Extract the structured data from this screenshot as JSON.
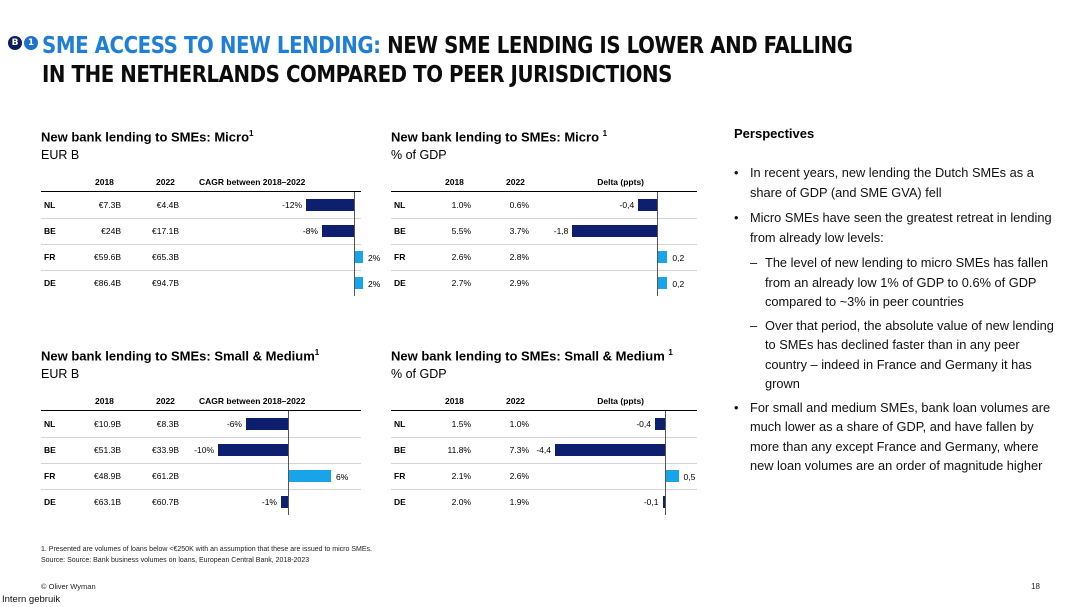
{
  "badges": [
    "B",
    "1"
  ],
  "header": {
    "title_accent": "SME ACCESS TO NEW LENDING:",
    "title_rest": " NEW SME LENDING IS LOWER AND FALLING",
    "title_line2": "IN THE NETHERLANDS COMPARED TO PEER JURISDICTIONS"
  },
  "panels": {
    "micro_eur": {
      "title": "New bank lending to SMEs: Micro",
      "sup": "1",
      "unit": "EUR B"
    },
    "micro_gdp": {
      "title": "New bank lending to SMEs: Micro ",
      "sup": "1",
      "unit": "% of GDP"
    },
    "sm_eur": {
      "title": "New bank lending to SMEs: Small & Medium",
      "sup": "1",
      "unit": "EUR B"
    },
    "sm_gdp": {
      "title": "New bank lending to SMEs: Small & Medium ",
      "sup": "1",
      "unit": "% of GDP"
    }
  },
  "chart_data": [
    {
      "type": "table",
      "title": "New bank lending to SMEs: Micro",
      "unit": "EUR B",
      "columns": [
        "2018",
        "2022",
        "CAGR between 2018–2022"
      ],
      "rows": [
        {
          "country": "NL",
          "v2018": "€7.3B",
          "v2022": "€4.4B",
          "value": -12,
          "label": "-12%"
        },
        {
          "country": "BE",
          "v2018": "€24B",
          "v2022": "€17.1B",
          "value": -8,
          "label": "-8%"
        },
        {
          "country": "FR",
          "v2018": "€59.6B",
          "v2022": "€65.3B",
          "value": 2,
          "label": "2%"
        },
        {
          "country": "DE",
          "v2018": "€86.4B",
          "v2022": "€94.7B",
          "value": 2,
          "label": "2%"
        }
      ]
    },
    {
      "type": "table",
      "title": "New bank lending to SMEs: Micro",
      "unit": "% of GDP",
      "columns": [
        "2018",
        "2022",
        "Delta (ppts)"
      ],
      "rows": [
        {
          "country": "NL",
          "v2018": "1.0%",
          "v2022": "0.6%",
          "value": -0.4,
          "label": "-0,4"
        },
        {
          "country": "BE",
          "v2018": "5.5%",
          "v2022": "3.7%",
          "value": -1.8,
          "label": "-1,8"
        },
        {
          "country": "FR",
          "v2018": "2.6%",
          "v2022": "2.8%",
          "value": 0.2,
          "label": "0,2"
        },
        {
          "country": "DE",
          "v2018": "2.7%",
          "v2022": "2.9%",
          "value": 0.2,
          "label": "0,2"
        }
      ]
    },
    {
      "type": "table",
      "title": "New bank lending to SMEs: Small & Medium",
      "unit": "EUR B",
      "columns": [
        "2018",
        "2022",
        "CAGR between 2018–2022"
      ],
      "rows": [
        {
          "country": "NL",
          "v2018": "€10.9B",
          "v2022": "€8.3B",
          "value": -6,
          "label": "-6%"
        },
        {
          "country": "BE",
          "v2018": "€51.3B",
          "v2022": "€33.9B",
          "value": -10,
          "label": "-10%"
        },
        {
          "country": "FR",
          "v2018": "€48.9B",
          "v2022": "€61.2B",
          "value": 6,
          "label": "6%"
        },
        {
          "country": "DE",
          "v2018": "€63.1B",
          "v2022": "€60.7B",
          "value": -1,
          "label": "-1%"
        }
      ]
    },
    {
      "type": "table",
      "title": "New bank lending to SMEs: Small & Medium",
      "unit": "% of GDP",
      "columns": [
        "2018",
        "2022",
        "Delta (ppts)"
      ],
      "rows": [
        {
          "country": "NL",
          "v2018": "1.5%",
          "v2022": "1.0%",
          "value": -0.4,
          "label": "-0,4"
        },
        {
          "country": "BE",
          "v2018": "11.8%",
          "v2022": "7.3%",
          "value": -4.4,
          "label": "-4,4"
        },
        {
          "country": "FR",
          "v2018": "2.1%",
          "v2022": "2.6%",
          "value": 0.5,
          "label": "0,5"
        },
        {
          "country": "DE",
          "v2018": "2.0%",
          "v2022": "1.9%",
          "value": -0.1,
          "label": "-0,1"
        }
      ]
    }
  ],
  "perspectives": {
    "heading": "Perspectives",
    "b1": "In recent years, new lending the Dutch SMEs as a share of GDP (and SME GVA) fell",
    "b2": "Micro SMEs have seen the greatest retreat in lending from already low levels:",
    "b2a": "The level of new lending to micro SMEs has fallen from an already low 1% of GDP to 0.6% of GDP compared to ~3% in peer countries",
    "b2b": "Over that period, the absolute value of new lending to SMEs has declined faster than in any peer country – indeed in France and Germany it has grown",
    "b3": "For small and medium SMEs, bank loan volumes are much lower as a share of GDP, and have fallen by more than any except France and Germany, where new loan volumes are an order of magnitude higher"
  },
  "footer": {
    "note1": "1. Presented are volumes of loans below <€250K with an assumption that these are issued to micro SMEs.",
    "note2": "Source: Source: Bank business volumes on loans, European Central Bank, 2018-2023",
    "copyright": "© Oliver Wyman",
    "page": "18",
    "classification": "Intern gebruik"
  },
  "colors": {
    "negative_bar": "#0d1f6e",
    "positive_bar": "#19a3e8",
    "title_accent": "#1f7fd6"
  }
}
